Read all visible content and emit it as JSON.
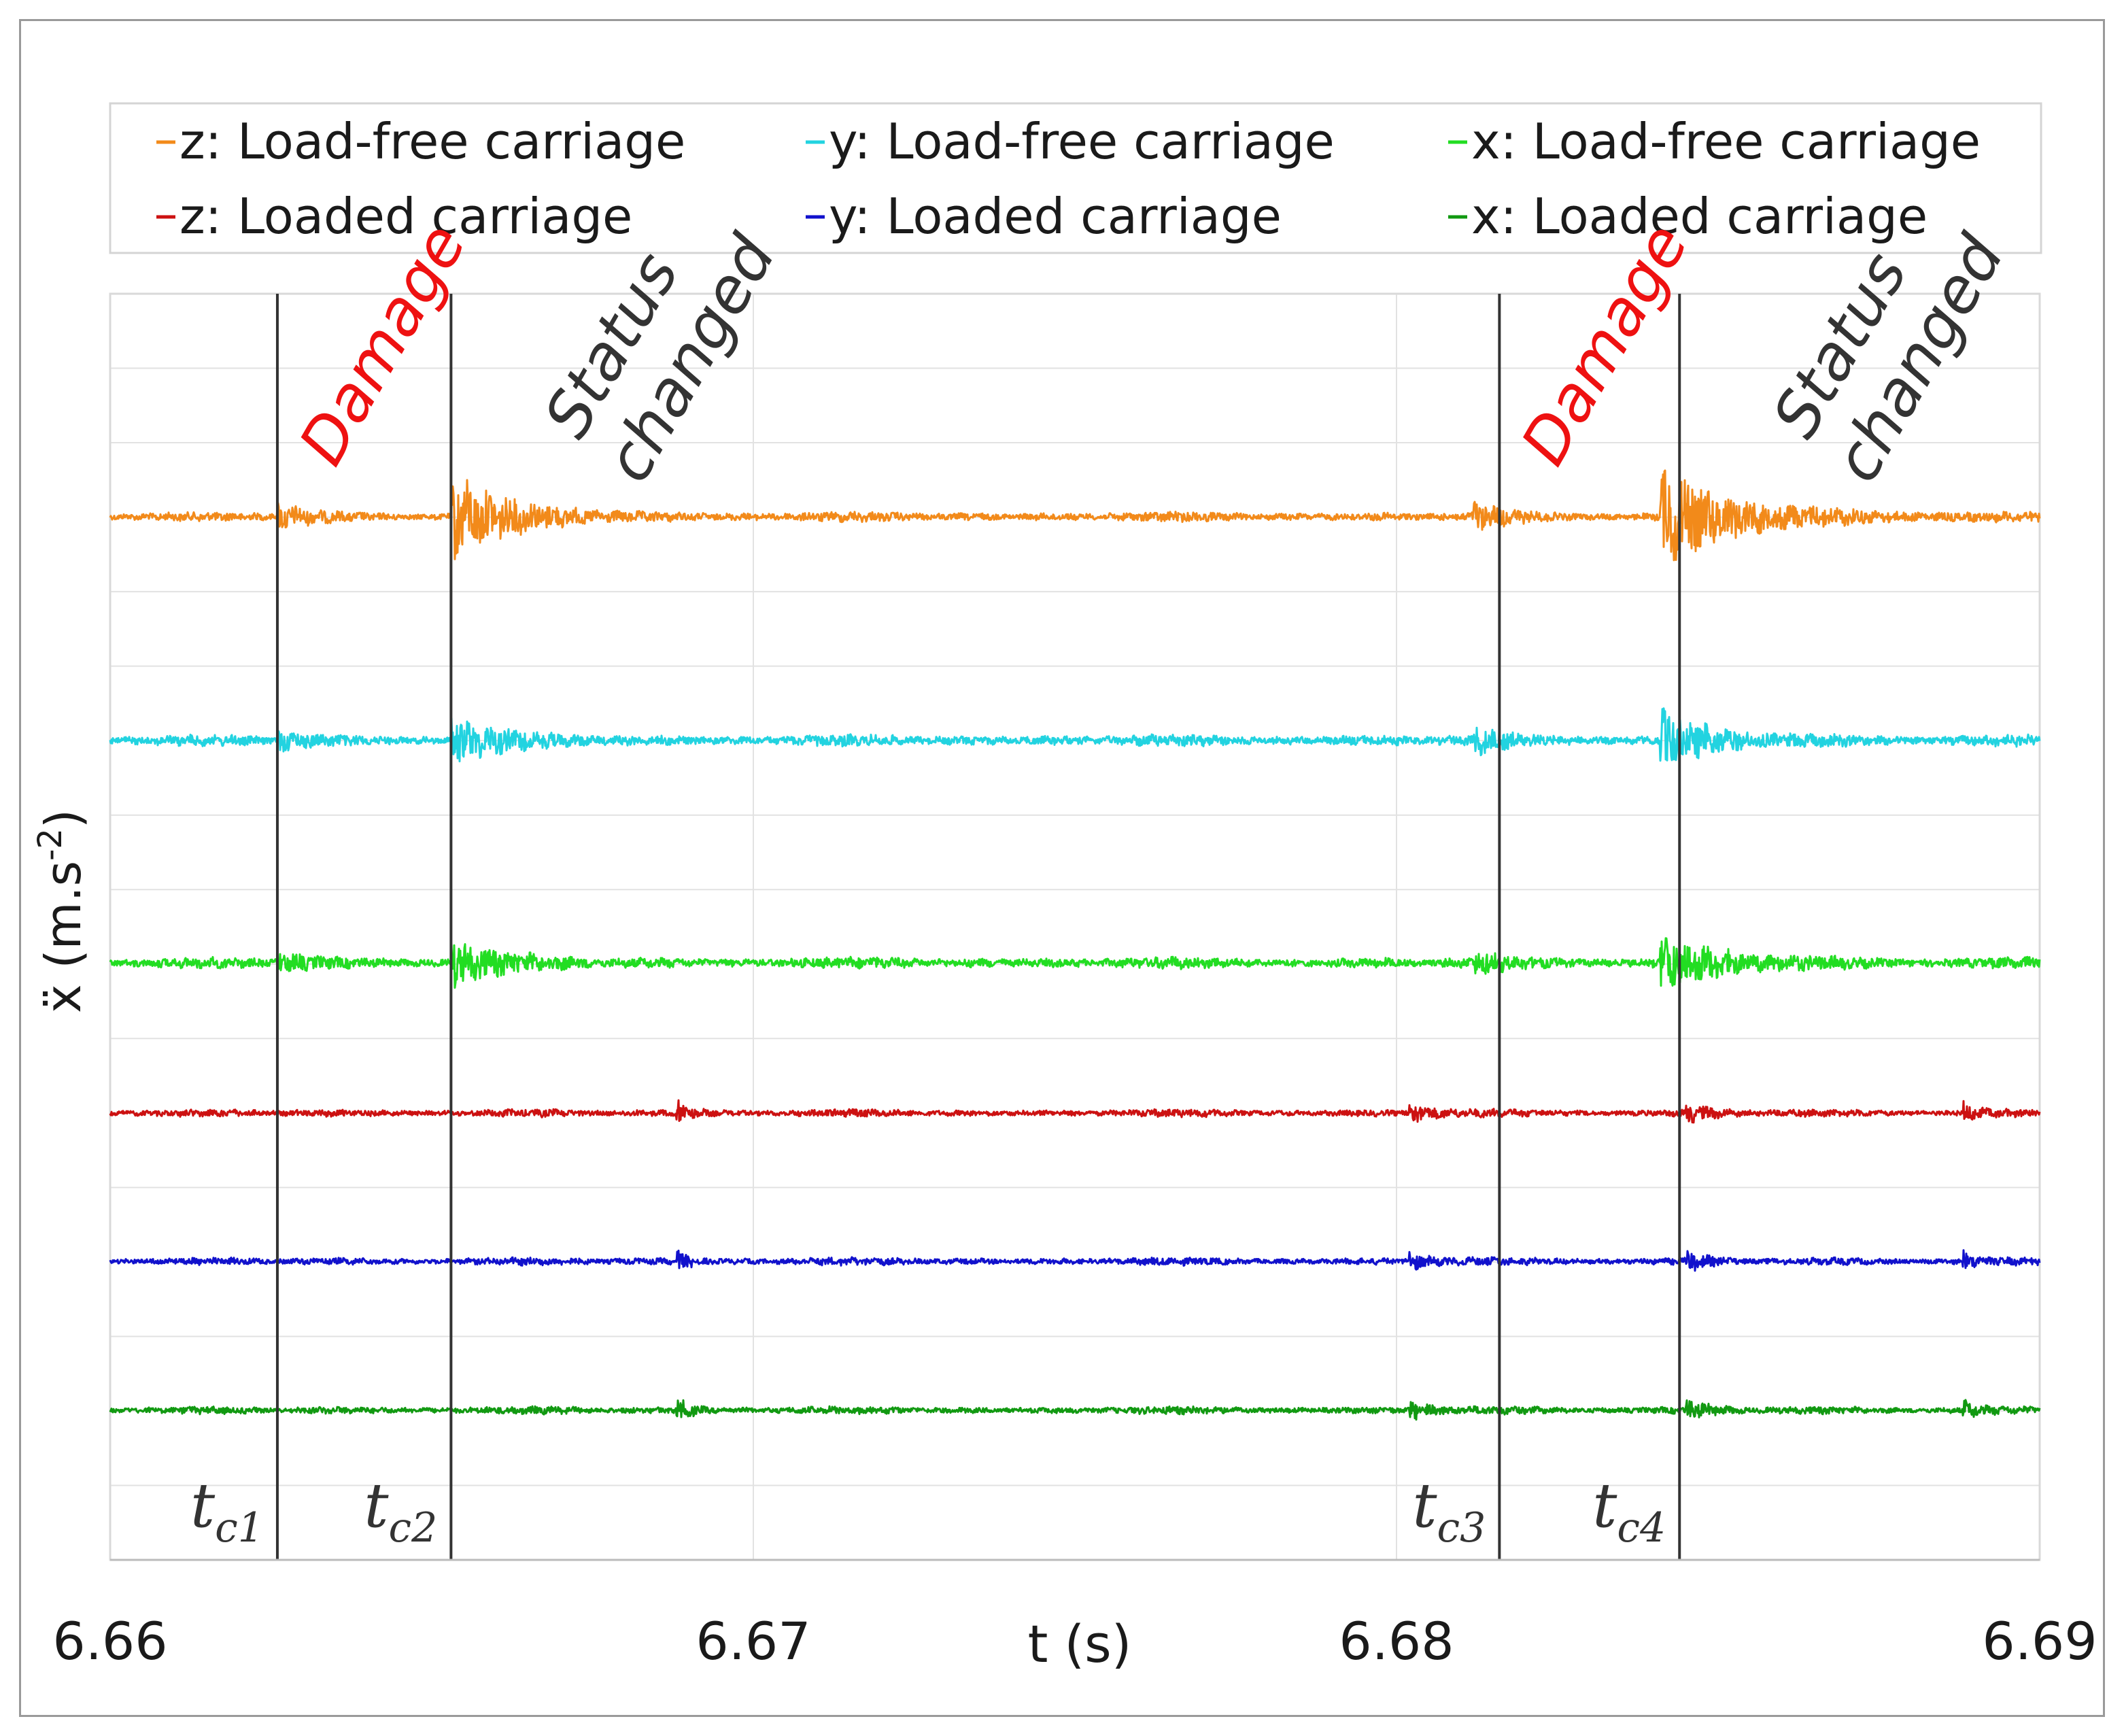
{
  "chart_data": {
    "type": "line",
    "title": "",
    "xlabel": "t (s)",
    "ylabel": "ẍ (m.s-2)",
    "ylabel_base": "ẍ (m.s",
    "ylabel_sup": "-2",
    "ylabel_close": ")",
    "xlim": [
      6.66,
      6.69
    ],
    "xticks": [
      6.66,
      6.67,
      6.68,
      6.69
    ],
    "xtick_labels": [
      "6.66",
      "6.67",
      "6.68",
      "6.69"
    ],
    "grid": true,
    "legend_position": "top",
    "series": [
      {
        "name": "z: Load-free carriage",
        "color": "#f28a1a",
        "trace_level": 6,
        "base_amplitude": 1.0,
        "bursts": [
          {
            "t": 6.6626,
            "amp": 3.0,
            "decay": 0.0004
          },
          {
            "t": 6.6653,
            "amp": 9.0,
            "decay": 0.0009
          },
          {
            "t": 6.6812,
            "amp": 3.0,
            "decay": 0.0004
          },
          {
            "t": 6.6841,
            "amp": 10.0,
            "decay": 0.0012
          }
        ]
      },
      {
        "name": "y: Load-free carriage",
        "color": "#22d3e0",
        "trace_level": 5,
        "base_amplitude": 1.2,
        "bursts": [
          {
            "t": 6.6626,
            "amp": 2.0,
            "decay": 0.0004
          },
          {
            "t": 6.6653,
            "amp": 5.0,
            "decay": 0.0007
          },
          {
            "t": 6.6812,
            "amp": 2.5,
            "decay": 0.0004
          },
          {
            "t": 6.6841,
            "amp": 6.0,
            "decay": 0.0008
          }
        ]
      },
      {
        "name": "x: Load-free carriage",
        "color": "#22dd22",
        "trace_level": 4,
        "base_amplitude": 1.2,
        "bursts": [
          {
            "t": 6.6626,
            "amp": 2.0,
            "decay": 0.0004
          },
          {
            "t": 6.6653,
            "amp": 5.0,
            "decay": 0.0007
          },
          {
            "t": 6.6812,
            "amp": 2.0,
            "decay": 0.0004
          },
          {
            "t": 6.6841,
            "amp": 6.0,
            "decay": 0.0009
          }
        ]
      },
      {
        "name": "z: Loaded carriage",
        "color": "#cc1111",
        "trace_level": 3,
        "base_amplitude": 0.8,
        "bursts": [
          {
            "t": 6.6688,
            "amp": 3.0,
            "decay": 0.0002
          },
          {
            "t": 6.6802,
            "amp": 2.5,
            "decay": 0.0003
          },
          {
            "t": 6.6845,
            "amp": 2.0,
            "decay": 0.0003
          },
          {
            "t": 6.6888,
            "amp": 2.0,
            "decay": 0.0002
          }
        ]
      },
      {
        "name": "y: Loaded carriage",
        "color": "#1111cc",
        "trace_level": 2,
        "base_amplitude": 0.8,
        "bursts": [
          {
            "t": 6.6688,
            "amp": 2.0,
            "decay": 0.0002
          },
          {
            "t": 6.6802,
            "amp": 1.8,
            "decay": 0.0003
          },
          {
            "t": 6.6845,
            "amp": 1.8,
            "decay": 0.0003
          },
          {
            "t": 6.6888,
            "amp": 1.8,
            "decay": 0.0002
          }
        ]
      },
      {
        "name": "x: Loaded carriage",
        "color": "#119911",
        "trace_level": 1,
        "base_amplitude": 0.8,
        "bursts": [
          {
            "t": 6.6688,
            "amp": 2.5,
            "decay": 0.0002
          },
          {
            "t": 6.6802,
            "amp": 2.0,
            "decay": 0.0003
          },
          {
            "t": 6.6845,
            "amp": 2.0,
            "decay": 0.0003
          },
          {
            "t": 6.6888,
            "amp": 2.0,
            "decay": 0.0002
          }
        ]
      }
    ],
    "event_lines": [
      {
        "t": 6.6626,
        "label": "t",
        "subscript": "c1"
      },
      {
        "t": 6.6653,
        "label": "t",
        "subscript": "c2"
      },
      {
        "t": 6.6816,
        "label": "t",
        "subscript": "c3"
      },
      {
        "t": 6.6844,
        "label": "t",
        "subscript": "c4"
      }
    ],
    "annotations": [
      {
        "text": "Damage",
        "color": "#ee1111",
        "t": 6.6626
      },
      {
        "text": "Status",
        "color": "#333333",
        "t": 6.6653,
        "line": 1
      },
      {
        "text": "changed",
        "color": "#333333",
        "t": 6.6653,
        "line": 2
      },
      {
        "text": "Damage",
        "color": "#ee1111",
        "t": 6.6816
      },
      {
        "text": "Status",
        "color": "#333333",
        "t": 6.6844,
        "line": 1
      },
      {
        "text": "changed",
        "color": "#333333",
        "t": 6.6844,
        "line": 2
      }
    ]
  }
}
